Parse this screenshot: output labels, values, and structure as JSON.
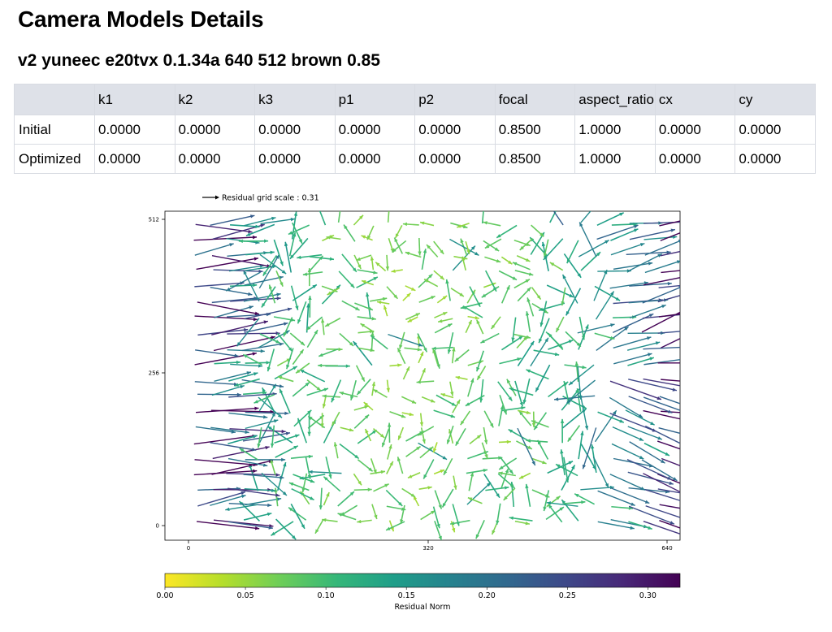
{
  "page": {
    "title": "Camera Models Details",
    "subtitle": "v2 yuneec e20tvx 0.1.34a 640 512 brown 0.85"
  },
  "table": {
    "headers": [
      "",
      "k1",
      "k2",
      "k3",
      "p1",
      "p2",
      "focal",
      "aspect_ratio",
      "cx",
      "cy"
    ],
    "rows": [
      {
        "label": "Initial",
        "values": [
          "0.0000",
          "0.0000",
          "0.0000",
          "0.0000",
          "0.0000",
          "0.8500",
          "1.0000",
          "0.0000",
          "0.0000"
        ]
      },
      {
        "label": "Optimized",
        "values": [
          "0.0000",
          "0.0000",
          "0.0000",
          "0.0000",
          "0.0000",
          "0.8500",
          "1.0000",
          "0.0000",
          "0.0000"
        ]
      }
    ]
  },
  "chart_data": {
    "type": "quiver",
    "legend": {
      "label": "Residual grid scale : 0.31",
      "placement": "top-left"
    },
    "xlim": [
      -36,
      668
    ],
    "ylim": [
      -26,
      528
    ],
    "xticks": [
      "0",
      "320",
      "640"
    ],
    "yticks": [
      "0",
      "256",
      "512"
    ],
    "grid": false,
    "colorbar": {
      "label": "Residual Norm",
      "range": [
        0,
        0.32
      ],
      "ticks": [
        "0.00",
        "0.05",
        "0.10",
        "0.15",
        "0.20",
        "0.25",
        "0.30"
      ],
      "colormap": "viridis",
      "colors": [
        "#fde725",
        "#b5de2b",
        "#6ece58",
        "#35b779",
        "#1f9e89",
        "#26828e",
        "#31688e",
        "#3e4989",
        "#482878",
        "#440154"
      ]
    }
  }
}
